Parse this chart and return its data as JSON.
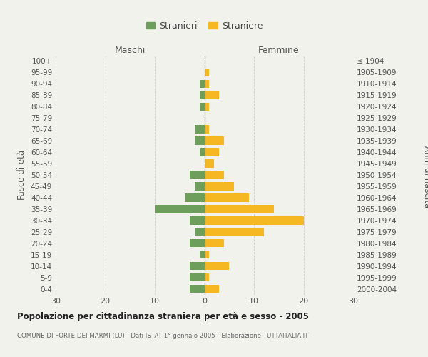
{
  "age_groups": [
    "100+",
    "95-99",
    "90-94",
    "85-89",
    "80-84",
    "75-79",
    "70-74",
    "65-69",
    "60-64",
    "55-59",
    "50-54",
    "45-49",
    "40-44",
    "35-39",
    "30-34",
    "25-29",
    "20-24",
    "15-19",
    "10-14",
    "5-9",
    "0-4"
  ],
  "birth_years": [
    "≤ 1904",
    "1905-1909",
    "1910-1914",
    "1915-1919",
    "1920-1924",
    "1925-1929",
    "1930-1934",
    "1935-1939",
    "1940-1944",
    "1945-1949",
    "1950-1954",
    "1955-1959",
    "1960-1964",
    "1965-1969",
    "1970-1974",
    "1975-1979",
    "1980-1984",
    "1985-1989",
    "1990-1994",
    "1995-1999",
    "2000-2004"
  ],
  "maschi": [
    0,
    0,
    1,
    1,
    1,
    0,
    2,
    2,
    1,
    0,
    3,
    2,
    4,
    10,
    3,
    2,
    3,
    1,
    3,
    3,
    3
  ],
  "femmine": [
    0,
    1,
    1,
    3,
    1,
    0,
    1,
    4,
    3,
    2,
    4,
    6,
    9,
    14,
    20,
    12,
    4,
    1,
    5,
    1,
    3
  ],
  "maschi_color": "#6d9e5b",
  "femmine_color": "#f5b722",
  "background_color": "#f2f2ed",
  "grid_color": "#cccccc",
  "dashed_line_color": "#909070",
  "title": "Popolazione per cittadinanza straniera per età e sesso - 2005",
  "subtitle": "COMUNE DI FORTE DEI MARMI (LU) - Dati ISTAT 1° gennaio 2005 - Elaborazione TUTTAITALIA.IT",
  "label_maschi": "Maschi",
  "label_femmine": "Femmine",
  "ylabel_left": "Fasce di età",
  "ylabel_right": "Anni di nascita",
  "legend_stranieri": "Stranieri",
  "legend_straniere": "Straniere",
  "xlim": 30
}
